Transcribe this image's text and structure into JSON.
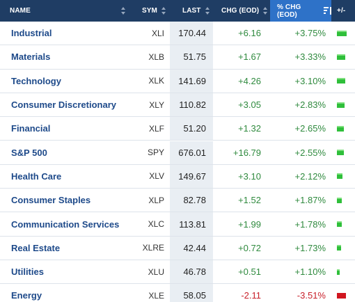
{
  "header": {
    "name": "NAME",
    "sym": "SYM",
    "last": "LAST",
    "chg": "CHG (EOD)",
    "pct": "% CHG (EOD)",
    "bar": "+/-"
  },
  "colors": {
    "header_bg": "#1f3d64",
    "sorted_header_bg": "#2e72c8",
    "positive": "#2f8a3e",
    "negative": "#c8202a",
    "name_link": "#1e4a8a"
  },
  "rows": [
    {
      "name": "Industrial",
      "sym": "XLI",
      "last": "170.44",
      "chg": "+6.16",
      "pct": "+3.75%",
      "dir": "up",
      "bar_level": 1.0
    },
    {
      "name": "Materials",
      "sym": "XLB",
      "last": "51.75",
      "chg": "+1.67",
      "pct": "+3.33%",
      "dir": "up",
      "bar_level": 0.89
    },
    {
      "name": "Technology",
      "sym": "XLK",
      "last": "141.69",
      "chg": "+4.26",
      "pct": "+3.10%",
      "dir": "up",
      "bar_level": 0.83
    },
    {
      "name": "Consumer Discretionary",
      "sym": "XLY",
      "last": "110.82",
      "chg": "+3.05",
      "pct": "+2.83%",
      "dir": "up",
      "bar_level": 0.75
    },
    {
      "name": "Financial",
      "sym": "XLF",
      "last": "51.20",
      "chg": "+1.32",
      "pct": "+2.65%",
      "dir": "up",
      "bar_level": 0.71
    },
    {
      "name": "S&P 500",
      "sym": "SPY",
      "last": "676.01",
      "chg": "+16.79",
      "pct": "+2.55%",
      "dir": "up",
      "bar_level": 0.68
    },
    {
      "name": "Health Care",
      "sym": "XLV",
      "last": "149.67",
      "chg": "+3.10",
      "pct": "+2.12%",
      "dir": "up",
      "bar_level": 0.57
    },
    {
      "name": "Consumer Staples",
      "sym": "XLP",
      "last": "82.78",
      "chg": "+1.52",
      "pct": "+1.87%",
      "dir": "up",
      "bar_level": 0.5
    },
    {
      "name": "Communication Services",
      "sym": "XLC",
      "last": "113.81",
      "chg": "+1.99",
      "pct": "+1.78%",
      "dir": "up",
      "bar_level": 0.47
    },
    {
      "name": "Real Estate",
      "sym": "XLRE",
      "last": "42.44",
      "chg": "+0.72",
      "pct": "+1.73%",
      "dir": "up",
      "bar_level": 0.46
    },
    {
      "name": "Utilities",
      "sym": "XLU",
      "last": "46.78",
      "chg": "+0.51",
      "pct": "+1.10%",
      "dir": "up",
      "bar_level": 0.29
    },
    {
      "name": "Energy",
      "sym": "XLE",
      "last": "58.05",
      "chg": "-2.11",
      "pct": "-3.51%",
      "dir": "down",
      "bar_level": 0.94
    }
  ]
}
